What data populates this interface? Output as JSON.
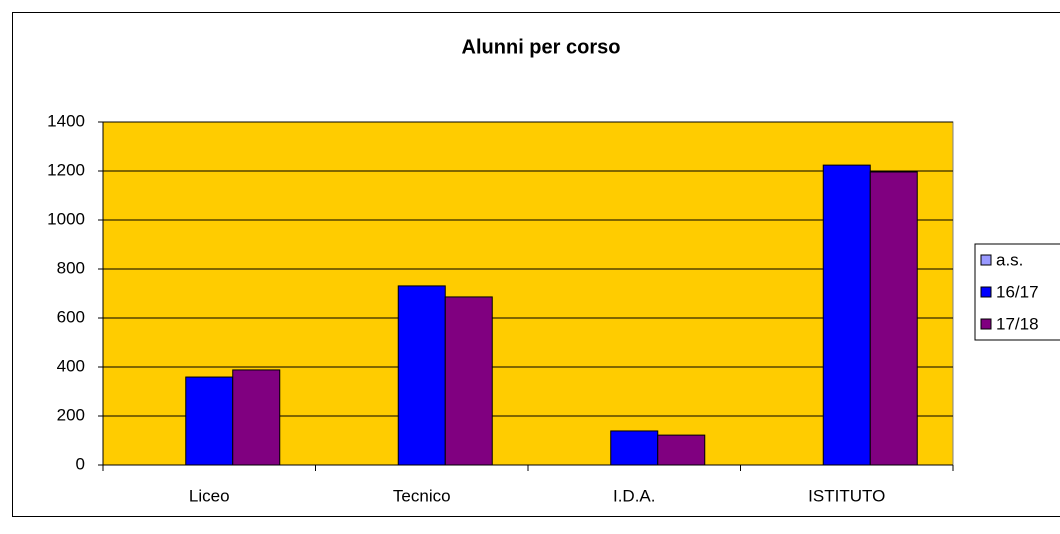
{
  "chart_data": {
    "type": "bar",
    "title": "Alunni per corso",
    "categories": [
      "Liceo",
      "Tecnico",
      "I.D.A.",
      "ISTITUTO"
    ],
    "series": [
      {
        "name": "a.s.",
        "color": "#9999ff",
        "values": [
          null,
          null,
          null,
          null
        ]
      },
      {
        "name": "16/17",
        "color": "#0000ff",
        "values": [
          359,
          731,
          139,
          1224
        ]
      },
      {
        "name": "17/18",
        "color": "#800080",
        "values": [
          388,
          686,
          122,
          1196
        ]
      }
    ],
    "ylim": [
      0,
      1400
    ],
    "yticks": [
      0,
      200,
      400,
      600,
      800,
      1000,
      1200,
      1400
    ],
    "grid": true,
    "plot_background": "#ffcc00",
    "legend": "right"
  }
}
